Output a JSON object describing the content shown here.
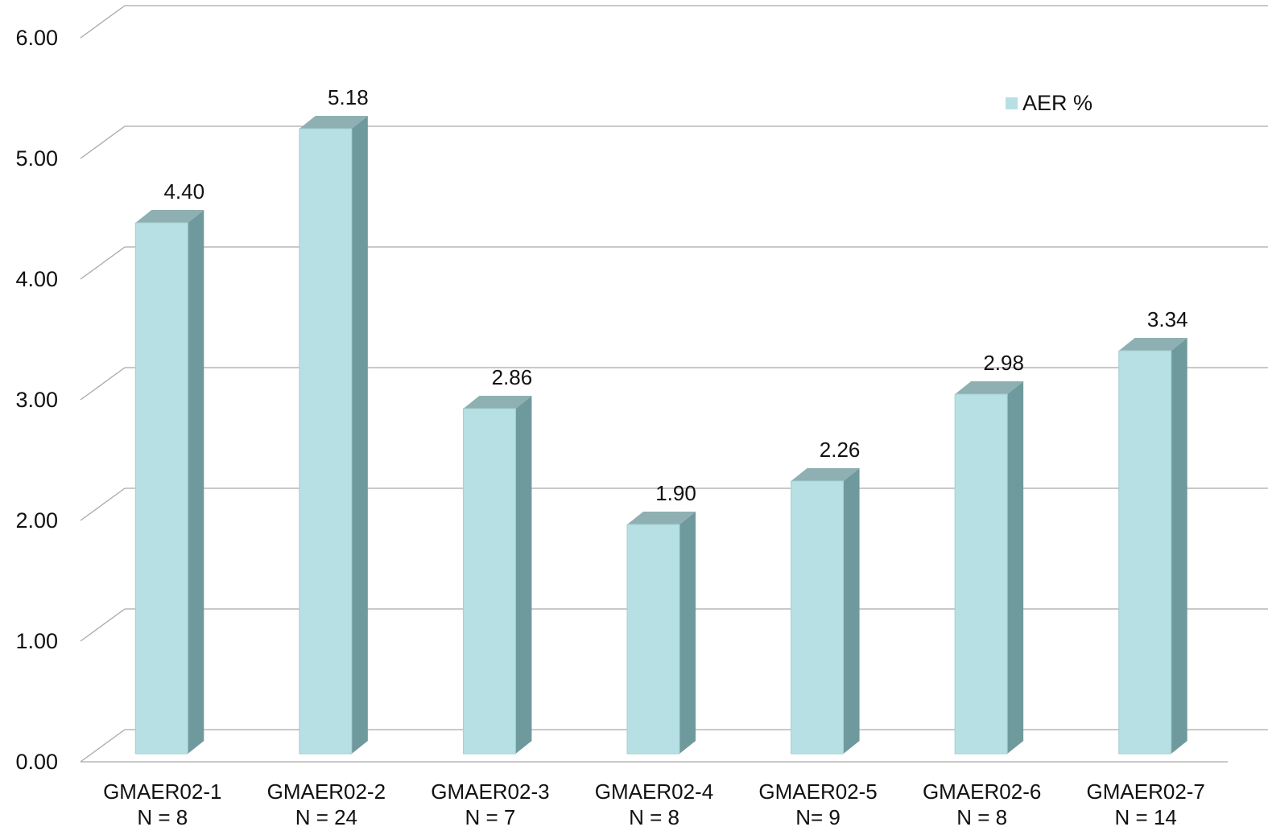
{
  "chart_data": {
    "type": "bar",
    "title": "",
    "xlabel": "",
    "ylabel": "",
    "categories": [
      "GMAER02-1\nN = 8",
      "GMAER02-2\nN = 24",
      "GMAER02-3\nN = 7",
      "GMAER02-4\nN = 8",
      "GMAER02-5\nN= 9",
      "GMAER02-6\nN = 8",
      "GMAER02-7\nN = 14"
    ],
    "series": [
      {
        "name": "AER %",
        "values": [
          4.4,
          5.18,
          2.86,
          1.9,
          2.26,
          2.98,
          3.34
        ]
      }
    ],
    "data_labels": [
      "4.40",
      "5.18",
      "2.86",
      "1.90",
      "2.26",
      "2.98",
      "3.34"
    ],
    "y_ticks": [
      "0.00",
      "1.00",
      "2.00",
      "3.00",
      "4.00",
      "5.00",
      "6.00"
    ],
    "ylim": [
      0,
      6
    ],
    "grid": true,
    "style": "3d",
    "legend_position": "top-right",
    "colors": {
      "bar_front": "#b7e0e4",
      "bar_side": "#6f9a9d",
      "bar_top": "#8fb0b2",
      "grid": "#a9a9a9",
      "text": "#111111"
    }
  }
}
